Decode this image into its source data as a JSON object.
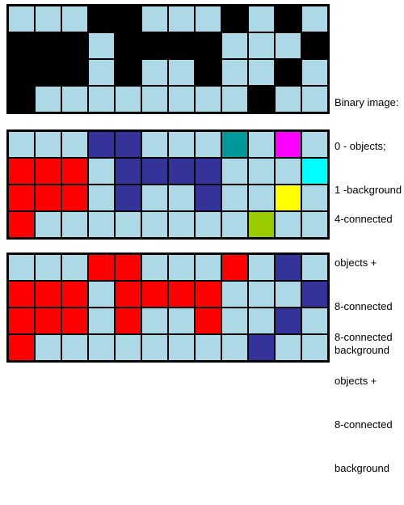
{
  "palette": {
    "0": "#000000",
    "1": "#add8e6",
    "r": "#ff0000",
    "b": "#333399",
    "t": "#009999",
    "m": "#ff00ff",
    "c": "#00ffff",
    "y": "#ffff00",
    "g": "#99cc00"
  },
  "panels": [
    {
      "id": "binary-image",
      "caption_lines": [
        "Binary image:",
        "0 - objects;",
        "1 -background"
      ],
      "rows": [
        [
          "1",
          "1",
          "1",
          "0",
          "0",
          "1",
          "1",
          "1",
          "0",
          "1",
          "0",
          "1"
        ],
        [
          "0",
          "0",
          "0",
          "1",
          "0",
          "0",
          "0",
          "0",
          "1",
          "1",
          "1",
          "0"
        ],
        [
          "0",
          "0",
          "0",
          "1",
          "0",
          "1",
          "1",
          "0",
          "1",
          "1",
          "0",
          "1"
        ],
        [
          "0",
          "1",
          "1",
          "1",
          "1",
          "1",
          "1",
          "1",
          "1",
          "0",
          "1",
          "1"
        ]
      ]
    },
    {
      "id": "four-connected",
      "caption_lines": [
        "4-connected",
        "objects +",
        "8-connected",
        "background"
      ],
      "rows": [
        [
          "1",
          "1",
          "1",
          "b",
          "b",
          "1",
          "1",
          "1",
          "t",
          "1",
          "m",
          "1"
        ],
        [
          "r",
          "r",
          "r",
          "1",
          "b",
          "b",
          "b",
          "b",
          "1",
          "1",
          "1",
          "c"
        ],
        [
          "r",
          "r",
          "r",
          "1",
          "b",
          "1",
          "1",
          "b",
          "1",
          "1",
          "y",
          "1"
        ],
        [
          "r",
          "1",
          "1",
          "1",
          "1",
          "1",
          "1",
          "1",
          "1",
          "g",
          "1",
          "1"
        ]
      ]
    },
    {
      "id": "eight-connected",
      "caption_lines": [
        "8-connected",
        "objects +",
        "8-connected",
        "background"
      ],
      "rows": [
        [
          "1",
          "1",
          "1",
          "r",
          "r",
          "1",
          "1",
          "1",
          "r",
          "1",
          "b",
          "1"
        ],
        [
          "r",
          "r",
          "r",
          "1",
          "r",
          "r",
          "r",
          "r",
          "1",
          "1",
          "1",
          "b"
        ],
        [
          "r",
          "r",
          "r",
          "1",
          "r",
          "1",
          "1",
          "r",
          "1",
          "1",
          "b",
          "1"
        ],
        [
          "r",
          "1",
          "1",
          "1",
          "1",
          "1",
          "1",
          "1",
          "1",
          "b",
          "1",
          "1"
        ]
      ]
    }
  ]
}
